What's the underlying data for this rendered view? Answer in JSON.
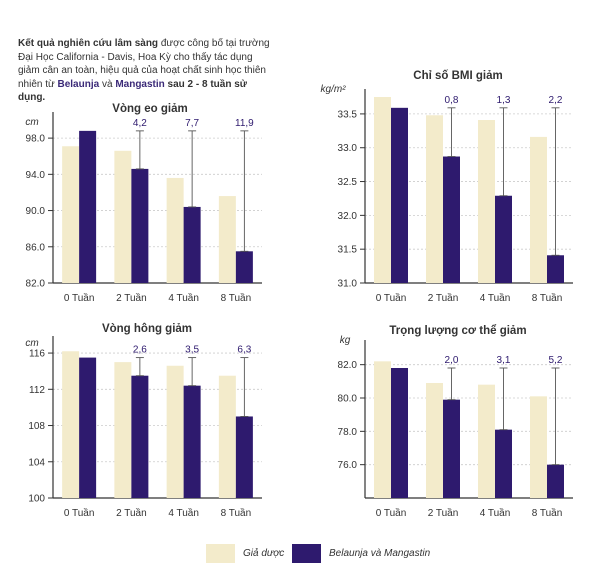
{
  "intro": {
    "part1": "Kết quả nghiên cứu lâm sàng",
    "part2": " được công bố tại trường Đại Học California - Davis, Hoa Kỳ cho thấy tác dụng giảm cân an toàn, hiệu quả của hoạt chất sinh học thiên nhiên từ ",
    "brand1": "Belaunja",
    "part3": " và ",
    "brand2": "Mangastin",
    "part4": " sau 2 - 8 tuần sử dụng."
  },
  "colors": {
    "placebo": "#f3ebcb",
    "treatment": "#2e1a6e",
    "grid": "#cccccc",
    "axis": "#333333",
    "text": "#333333"
  },
  "legend": [
    {
      "label": "Giả dược",
      "color": "#f3ebcb"
    },
    {
      "label": "Belaunja và Mangastin",
      "color": "#2e1a6e"
    }
  ],
  "chart_data": [
    {
      "type": "bar",
      "title": "Vòng eo giảm",
      "ylabel": "cm",
      "categories": [
        "0 Tuần",
        "2 Tuần",
        "4 Tuần",
        "8 Tuần"
      ],
      "yticks": [
        "98.0",
        "94.0",
        "90.0",
        "86.0",
        "82.0"
      ],
      "ylim": [
        82,
        100
      ],
      "grid": true,
      "series": [
        {
          "name": "Giả dược",
          "values": [
            97.1,
            96.6,
            93.6,
            91.6
          ]
        },
        {
          "name": "Belaunja và Mangastin",
          "values": [
            98.8,
            94.6,
            90.4,
            85.5
          ]
        }
      ],
      "reductions": [
        "4,2",
        "7,7",
        "11,9"
      ]
    },
    {
      "type": "bar",
      "title": "Chỉ số BMI giảm",
      "ylabel": "kg/m²",
      "categories": [
        "0 Tuần",
        "2 Tuần",
        "4 Tuần",
        "8 Tuần"
      ],
      "yticks": [
        "33.5",
        "33.0",
        "32.5",
        "32.0",
        "31.5",
        "31.0"
      ],
      "ylim": [
        31,
        33.75
      ],
      "grid": true,
      "series": [
        {
          "name": "Giả dược",
          "values": [
            33.75,
            33.48,
            33.41,
            33.16
          ]
        },
        {
          "name": "Belaunja và Mangastin",
          "values": [
            33.59,
            32.87,
            32.29,
            31.41
          ]
        }
      ],
      "reductions": [
        "0,8",
        "1,3",
        "2,2"
      ]
    },
    {
      "type": "bar",
      "title": "Vòng hông giảm",
      "ylabel": "cm",
      "categories": [
        "0 Tuần",
        "2 Tuần",
        "4 Tuần",
        "8 Tuần"
      ],
      "yticks": [
        "116",
        "112",
        "108",
        "104",
        "100"
      ],
      "ylim": [
        100,
        117
      ],
      "grid": true,
      "series": [
        {
          "name": "Giả dược",
          "values": [
            116.2,
            115.0,
            114.6,
            113.5
          ]
        },
        {
          "name": "Belaunja và Mangastin",
          "values": [
            115.5,
            113.5,
            112.4,
            109.0
          ]
        }
      ],
      "reductions": [
        "2,6",
        "3,5",
        "6,3"
      ]
    },
    {
      "type": "bar",
      "title": "Trọng lượng cơ thể giảm",
      "ylabel": "kg",
      "categories": [
        "0 Tuần",
        "2 Tuần",
        "4 Tuần",
        "8 Tuần"
      ],
      "yticks": [
        "82.0",
        "80.0",
        "78.0",
        "76.0"
      ],
      "ylim": [
        74,
        83
      ],
      "grid": true,
      "series": [
        {
          "name": "Giả dược",
          "values": [
            82.2,
            80.9,
            80.8,
            80.1
          ]
        },
        {
          "name": "Belaunja và Mangastin",
          "values": [
            81.8,
            79.9,
            78.1,
            76.0
          ]
        }
      ],
      "reductions": [
        "2,0",
        "3,1",
        "5,2"
      ]
    }
  ]
}
